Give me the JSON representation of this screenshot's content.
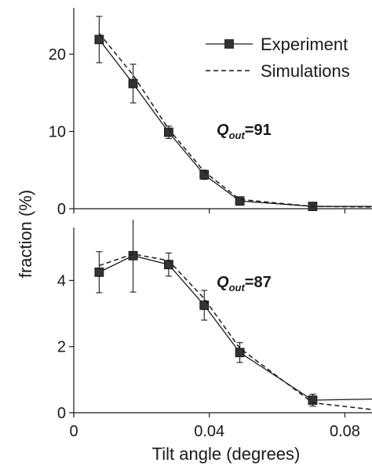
{
  "chart_data": [
    {
      "type": "line",
      "panel": "top",
      "annotation": {
        "symbol": "Q",
        "subscript": "out",
        "suffix": "=91"
      },
      "legend": {
        "placement": "top-right",
        "entries": [
          "Experiment",
          "Simulations"
        ]
      },
      "xlim": [
        0,
        0.088
      ],
      "ylim": [
        0,
        26
      ],
      "yticks": [
        0,
        10,
        20
      ],
      "series": [
        {
          "name": "Experiment",
          "style": "solid-square",
          "x": [
            0.0075,
            0.0175,
            0.028,
            0.0385,
            0.049,
            0.0705,
            0.092
          ],
          "y": [
            21.9,
            16.2,
            9.9,
            4.4,
            1.0,
            0.3,
            0.3
          ],
          "err": [
            3.0,
            2.5,
            0.8,
            0.6,
            0.3,
            0.2,
            null
          ]
        },
        {
          "name": "Simulations",
          "style": "dashed",
          "x": [
            0.0075,
            0.0175,
            0.028,
            0.0385,
            0.049,
            0.0705,
            0.092
          ],
          "y": [
            22.7,
            17.3,
            10.3,
            4.8,
            1.2,
            0.3,
            0.2
          ]
        }
      ]
    },
    {
      "type": "line",
      "panel": "bottom",
      "annotation": {
        "symbol": "Q",
        "subscript": "out",
        "suffix": "=87"
      },
      "xlim": [
        0,
        0.088
      ],
      "ylim": [
        0,
        5.6
      ],
      "yticks": [
        0,
        2,
        4
      ],
      "series": [
        {
          "name": "Experiment",
          "style": "solid-square",
          "x": [
            0.0075,
            0.0175,
            0.028,
            0.0385,
            0.049,
            0.0705,
            0.092
          ],
          "y": [
            4.25,
            4.75,
            4.48,
            3.25,
            1.82,
            0.38,
            0.42
          ],
          "err": [
            0.62,
            1.1,
            0.35,
            0.45,
            0.3,
            0.18,
            null
          ]
        },
        {
          "name": "Simulations",
          "style": "dashed",
          "x": [
            0.0075,
            0.0175,
            0.028,
            0.0385,
            0.049,
            0.0705,
            0.092
          ],
          "y": [
            4.45,
            4.8,
            4.6,
            3.45,
            1.95,
            0.3,
            0.05
          ]
        }
      ]
    }
  ],
  "axes": {
    "xlabel": "Tilt angle (degrees)",
    "ylabel": "fraction (%)",
    "xtick_labels": [
      "0",
      "0.04",
      "0.08"
    ],
    "xtick_values": [
      0,
      0.04,
      0.08
    ]
  },
  "colors": {
    "line": "#1a1a1a",
    "marker": "#333333",
    "background": "#ffffff"
  }
}
